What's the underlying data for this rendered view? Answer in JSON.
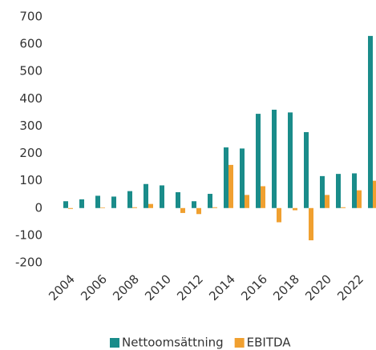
{
  "chart_data": {
    "type": "bar",
    "categories": [
      "2004",
      null,
      "2006",
      null,
      "2008",
      null,
      "2010",
      null,
      "2012",
      null,
      "2014",
      null,
      "2016",
      null,
      "2018",
      null,
      "2020",
      null,
      "2022",
      null
    ],
    "series": [
      {
        "name": "Nettoomsättning",
        "color": "#1a8c8a",
        "values": [
          25,
          32,
          45,
          42,
          62,
          88,
          83,
          58,
          25,
          52,
          222,
          218,
          345,
          360,
          350,
          278,
          117,
          125,
          127,
          630
        ]
      },
      {
        "name": "EBITDA",
        "color": "#f0a030",
        "values": [
          -3,
          0,
          2,
          0,
          3,
          15,
          0,
          -18,
          -22,
          3,
          158,
          48,
          80,
          -52,
          -8,
          -118,
          48,
          3,
          65,
          100
        ]
      }
    ],
    "ylim": [
      -200,
      700
    ],
    "yticks": [
      -200,
      -100,
      0,
      100,
      200,
      300,
      400,
      500,
      600,
      700
    ],
    "legend": "bottom"
  }
}
